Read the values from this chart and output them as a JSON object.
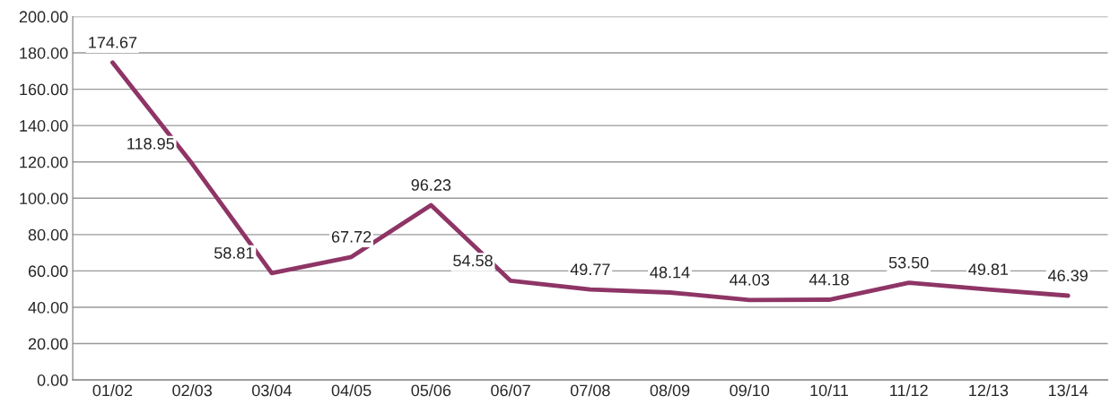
{
  "chart_data": {
    "type": "line",
    "categories": [
      "01/02",
      "02/03",
      "03/04",
      "04/05",
      "05/06",
      "06/07",
      "07/08",
      "08/09",
      "09/10",
      "10/11",
      "11/12",
      "12/13",
      "13/14"
    ],
    "series": [
      {
        "color": "#8e3566",
        "values": [
          174.67,
          118.95,
          58.81,
          67.72,
          96.23,
          54.58,
          49.77,
          48.14,
          44.03,
          44.18,
          53.5,
          49.81,
          46.39
        ],
        "value_labels": [
          "174.67",
          "118.95",
          "58.81",
          "67.72",
          "96.23",
          "54.58",
          "49.77",
          "48.14",
          "44.03",
          "44.18",
          "53.50",
          "49.81",
          "46.39"
        ]
      }
    ],
    "ylim": [
      0,
      200
    ],
    "yticks": [
      {
        "value": 0,
        "label": "0.00"
      },
      {
        "value": 20,
        "label": "20.00"
      },
      {
        "value": 40,
        "label": "40.00"
      },
      {
        "value": 60,
        "label": "60.00"
      },
      {
        "value": 80,
        "label": "80.00"
      },
      {
        "value": 100,
        "label": "100.00"
      },
      {
        "value": 120,
        "label": "120.00"
      },
      {
        "value": 140,
        "label": "140.00"
      },
      {
        "value": 160,
        "label": "160.00"
      },
      {
        "value": 180,
        "label": "180.00"
      },
      {
        "value": 200,
        "label": "200.00"
      }
    ],
    "grid": "y",
    "marker": "none",
    "line_style": "solid"
  }
}
